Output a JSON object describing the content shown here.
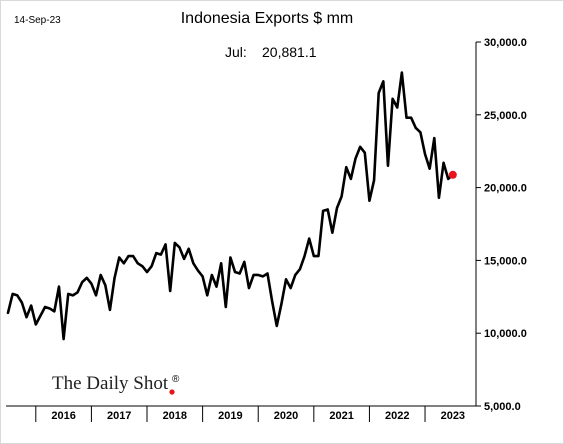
{
  "date_stamp": "14-Sep-23",
  "brand": "The Daily Shot",
  "brand_mark": "®",
  "chart_data": {
    "type": "line",
    "title": "Indonesia Exports $ mm",
    "annotation": {
      "label": "Jul:",
      "value": "20,881.1"
    },
    "xlabel": "",
    "ylabel": "",
    "ylim": [
      5000,
      30000
    ],
    "y_ticks": [
      5000,
      10000,
      15000,
      20000,
      25000,
      30000
    ],
    "y_tick_labels": [
      "5,000.0",
      "10,000.0",
      "15,000.0",
      "20,000.0",
      "25,000.0",
      "30,000.0"
    ],
    "x_range": [
      "2015-07",
      "2023-12"
    ],
    "x_year_labels": [
      "2016",
      "2017",
      "2018",
      "2019",
      "2020",
      "2021",
      "2022",
      "2023"
    ],
    "line_color": "#000000",
    "marker_color": "#e8141c",
    "grid": false,
    "series": [
      {
        "x": [
          "2015-07",
          "2015-08",
          "2015-09",
          "2015-10",
          "2015-11",
          "2015-12",
          "2016-01",
          "2016-02",
          "2016-03",
          "2016-04",
          "2016-05",
          "2016-06",
          "2016-07",
          "2016-08",
          "2016-09",
          "2016-10",
          "2016-11",
          "2016-12",
          "2017-01",
          "2017-02",
          "2017-03",
          "2017-04",
          "2017-05",
          "2017-06",
          "2017-07",
          "2017-08",
          "2017-09",
          "2017-10",
          "2017-11",
          "2017-12",
          "2018-01",
          "2018-02",
          "2018-03",
          "2018-04",
          "2018-05",
          "2018-06",
          "2018-07",
          "2018-08",
          "2018-09",
          "2018-10",
          "2018-11",
          "2018-12",
          "2019-01",
          "2019-02",
          "2019-03",
          "2019-04",
          "2019-05",
          "2019-06",
          "2019-07",
          "2019-08",
          "2019-09",
          "2019-10",
          "2019-11",
          "2019-12",
          "2020-01",
          "2020-02",
          "2020-03",
          "2020-04",
          "2020-05",
          "2020-06",
          "2020-07",
          "2020-08",
          "2020-09",
          "2020-10",
          "2020-11",
          "2020-12",
          "2021-01",
          "2021-02",
          "2021-03",
          "2021-04",
          "2021-05",
          "2021-06",
          "2021-07",
          "2021-08",
          "2021-09",
          "2021-10",
          "2021-11",
          "2021-12",
          "2022-01",
          "2022-02",
          "2022-03",
          "2022-04",
          "2022-05",
          "2022-06",
          "2022-07",
          "2022-08",
          "2022-09",
          "2022-10",
          "2022-11",
          "2022-12",
          "2023-01",
          "2023-02",
          "2023-03",
          "2023-04",
          "2023-05",
          "2023-06",
          "2023-07"
        ],
        "values": [
          11400,
          12700,
          12600,
          12100,
          11100,
          11900,
          10600,
          11200,
          11800,
          11700,
          11500,
          13200,
          9600,
          12700,
          12600,
          12800,
          13500,
          13800,
          13400,
          12600,
          14000,
          13300,
          11600,
          13800,
          15200,
          14800,
          15300,
          15300,
          14800,
          14600,
          14200,
          14600,
          15500,
          15400,
          16100,
          12900,
          16200,
          15900,
          15100,
          15800,
          14800,
          14300,
          13900,
          12600,
          14000,
          13200,
          14800,
          11800,
          15200,
          14200,
          14100,
          14900,
          13100,
          14000,
          14000,
          13900,
          14100,
          12200,
          10500,
          12000,
          13700,
          13100,
          14000,
          14400,
          15300,
          16500,
          15300,
          15300,
          18400,
          18500,
          16900,
          18600,
          19400,
          21400,
          20600,
          22000,
          22800,
          22400,
          19100,
          20500,
          26500,
          27300,
          21500,
          26100,
          25500,
          27900,
          24800,
          24800,
          24100,
          23800,
          22300,
          21300,
          23400,
          19300,
          21700,
          20600,
          20881.1
        ]
      }
    ]
  }
}
